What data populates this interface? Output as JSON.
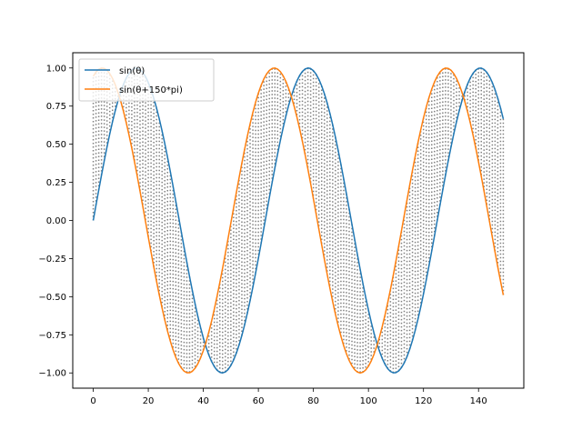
{
  "chart_data": {
    "type": "line",
    "title": "",
    "xlabel": "",
    "ylabel": "",
    "xlim": [
      -7.45,
      156.45
    ],
    "ylim": [
      -1.1,
      1.1
    ],
    "x_ticks": [
      0,
      20,
      40,
      60,
      80,
      100,
      120,
      140
    ],
    "x_tick_labels": [
      "0",
      "20",
      "40",
      "60",
      "80",
      "100",
      "120",
      "140"
    ],
    "y_ticks": [
      -1.0,
      -0.75,
      -0.5,
      -0.25,
      0.0,
      0.25,
      0.5,
      0.75,
      1.0
    ],
    "y_tick_labels": [
      "−1.00",
      "−0.75",
      "−0.50",
      "−0.25",
      "0.00",
      "0.25",
      "0.50",
      "0.75",
      "1.00"
    ],
    "grid": false,
    "legend_position": "top-left",
    "x_range": [
      0,
      149
    ],
    "series": [
      {
        "name": "sin(θ)",
        "color": "#1f77b4",
        "x_start": 0,
        "x_end": 149,
        "x_step": 1,
        "curve": "sin",
        "period": 62.5,
        "phase_shift": 0.0
      },
      {
        "name": "sin(θ+150*pi)",
        "color": "#ff7f0e",
        "x_start": 0,
        "x_end": 149,
        "x_step": 1,
        "curve": "sin",
        "period": 62.5,
        "phase_shift": 1.24
      }
    ],
    "connector_lines": {
      "style": "dotted",
      "color": "#808080",
      "description": "dotted grey lines connecting corresponding points of the two series"
    }
  }
}
